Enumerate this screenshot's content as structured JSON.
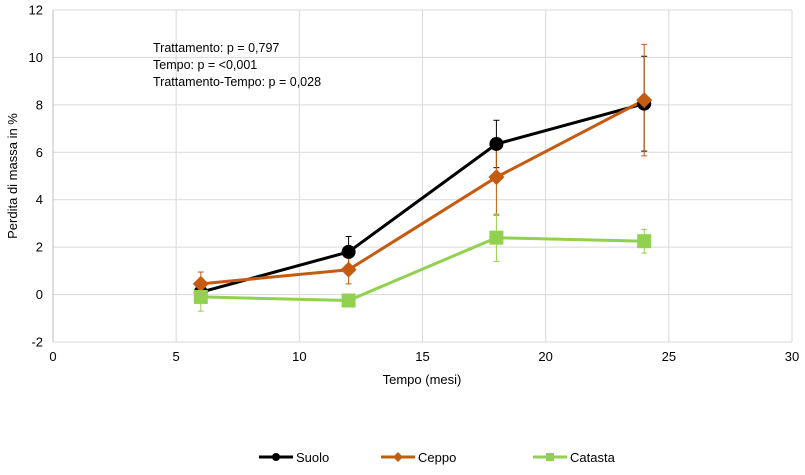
{
  "chart_data": {
    "type": "line",
    "xlabel": "Tempo (mesi)",
    "ylabel": "Perdita di massa in %",
    "xlim": [
      0,
      30
    ],
    "ylim": [
      -2,
      12
    ],
    "xticks": [
      0,
      5,
      10,
      15,
      20,
      25,
      30
    ],
    "yticks": [
      -2,
      0,
      2,
      4,
      6,
      8,
      10,
      12
    ],
    "grid": true,
    "legend_position": "bottom",
    "annotations": [
      "Trattamento: p = 0,797",
      "Tempo: p = <0,001",
      "Trattamento-Tempo: p = 0,028"
    ],
    "series": [
      {
        "name": "Suolo",
        "color": "#000000",
        "marker": "circle",
        "points": [
          {
            "x": 6,
            "y": 0.1,
            "err": 0.3
          },
          {
            "x": 12,
            "y": 1.8,
            "err": 0.65
          },
          {
            "x": 18,
            "y": 6.35,
            "err": 1.0
          },
          {
            "x": 24,
            "y": 8.05,
            "err": 2.0
          }
        ]
      },
      {
        "name": "Ceppo",
        "color": "#C55A11",
        "marker": "diamond",
        "points": [
          {
            "x": 6,
            "y": 0.45,
            "err": 0.5
          },
          {
            "x": 12,
            "y": 1.05,
            "err": 0.6
          },
          {
            "x": 18,
            "y": 4.95,
            "err": 1.6
          },
          {
            "x": 24,
            "y": 8.2,
            "err": 2.35
          }
        ]
      },
      {
        "name": "Catasta",
        "color": "#92D050",
        "marker": "square",
        "points": [
          {
            "x": 6,
            "y": -0.1,
            "err": 0.6
          },
          {
            "x": 12,
            "y": -0.25,
            "err": 0.25
          },
          {
            "x": 18,
            "y": 2.4,
            "err": 1.0
          },
          {
            "x": 24,
            "y": 2.25,
            "err": 0.5
          }
        ]
      }
    ]
  }
}
